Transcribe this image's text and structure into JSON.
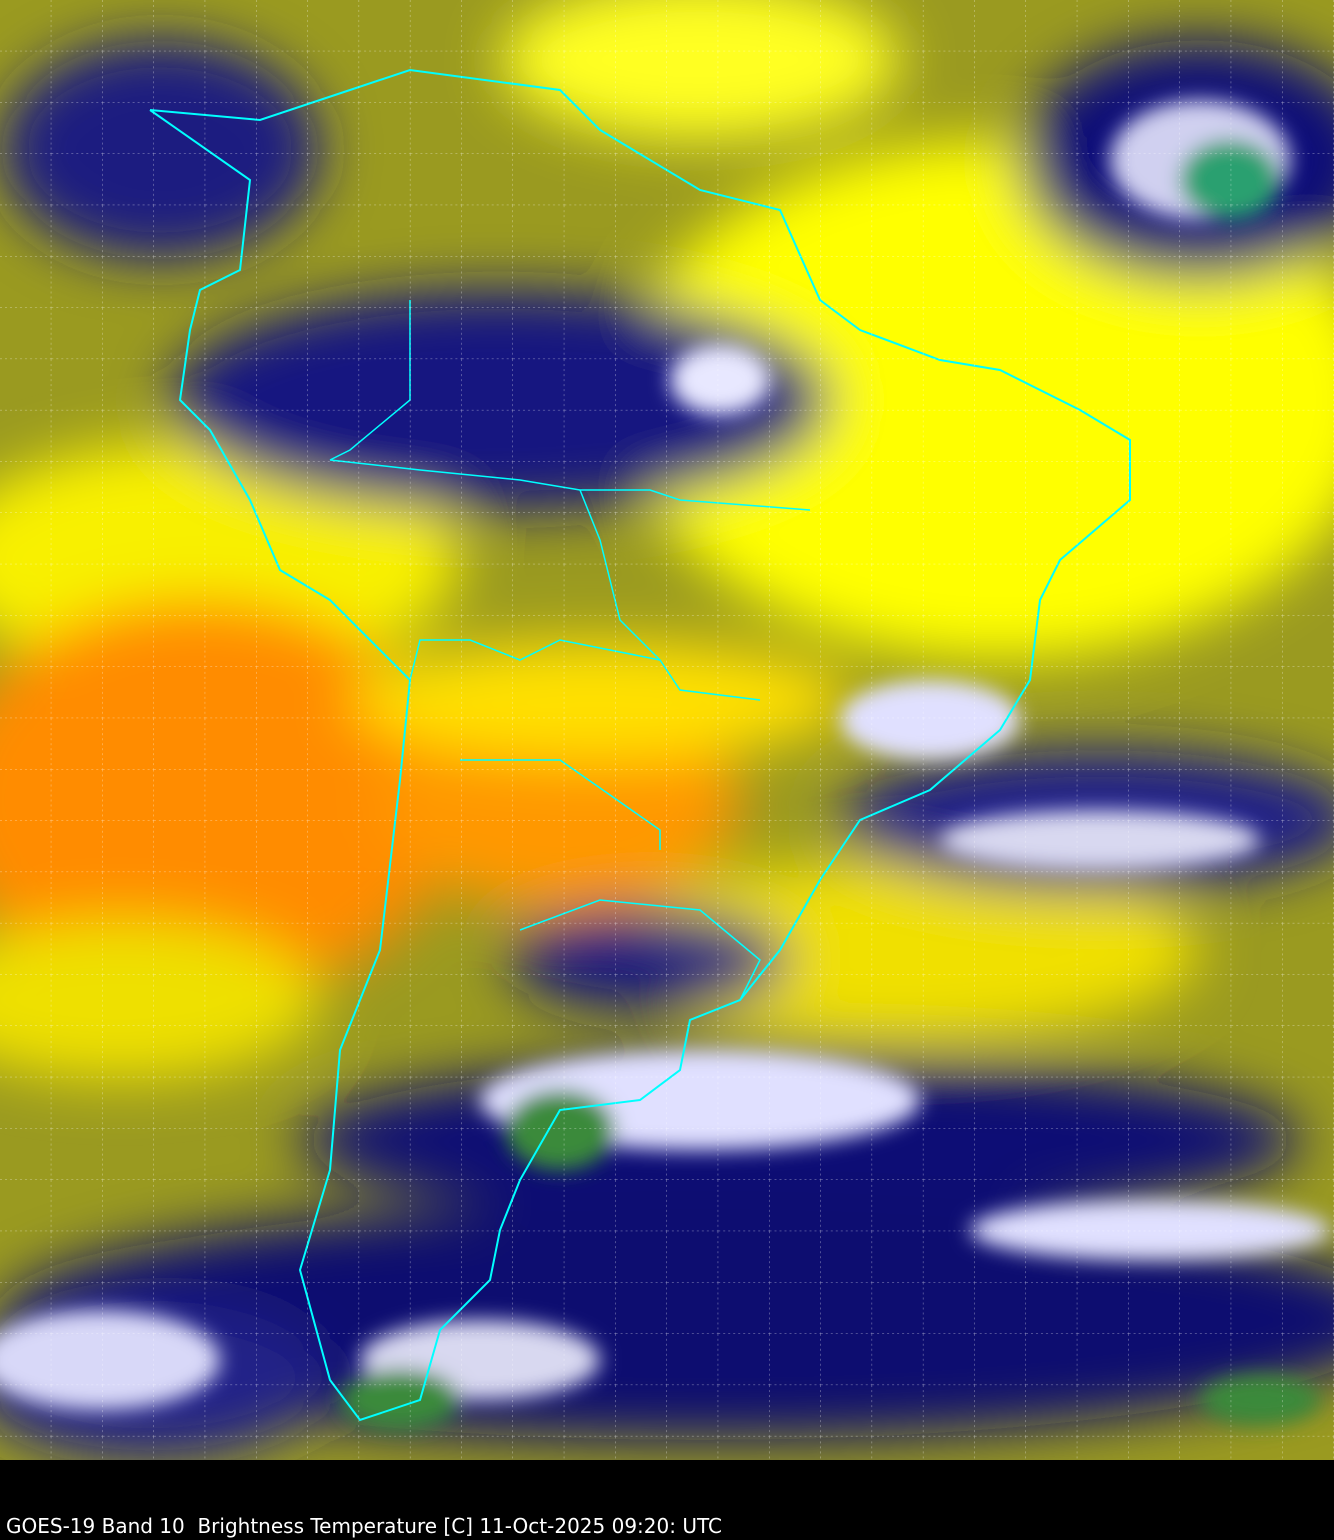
{
  "caption": "GOES-19 Band 10  Brightness Temperature [C] 11-Oct-2025 09:20: UTC",
  "colors": {
    "background": "#000000",
    "coastline": "#00ffff",
    "gridline": "#ffffff",
    "warm_dry": "#ff8000",
    "dry": "#ffff00",
    "mid": "#8c8c1e",
    "moist": "#0a0a78",
    "cold": "#ffffff",
    "coldest": "#2e8b3a"
  }
}
